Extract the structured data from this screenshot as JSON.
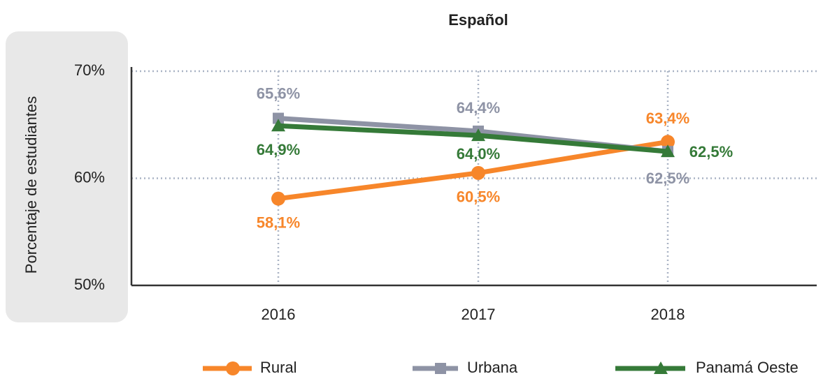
{
  "chart_data": {
    "type": "line",
    "title": "Español",
    "y_label": "Porcentaje de estudiantes",
    "categories": [
      "2016",
      "2017",
      "2018"
    ],
    "ylim": [
      50,
      70
    ],
    "yticks": [
      {
        "value": 50,
        "label": "50%"
      },
      {
        "value": 60,
        "label": "60%"
      },
      {
        "value": 70,
        "label": "70%"
      }
    ],
    "grid": true,
    "legend": "bottom",
    "series": [
      {
        "name": "Rural",
        "color": "#f7862a",
        "marker": "circle",
        "values": [
          58.1,
          60.5,
          63.4
        ],
        "value_labels": [
          "58,1%",
          "60,5%",
          "63,4%"
        ]
      },
      {
        "name": "Urbana",
        "color": "#8e93a5",
        "marker": "square",
        "values": [
          65.6,
          64.4,
          62.5
        ],
        "value_labels": [
          "65,6%",
          "64,4%",
          "62,5%"
        ]
      },
      {
        "name": "Panamá Oeste",
        "color": "#357a38",
        "marker": "triangle",
        "values": [
          64.9,
          64.0,
          62.5
        ],
        "value_labels": [
          "64,9%",
          "64,0%",
          "62,5%"
        ]
      }
    ]
  }
}
